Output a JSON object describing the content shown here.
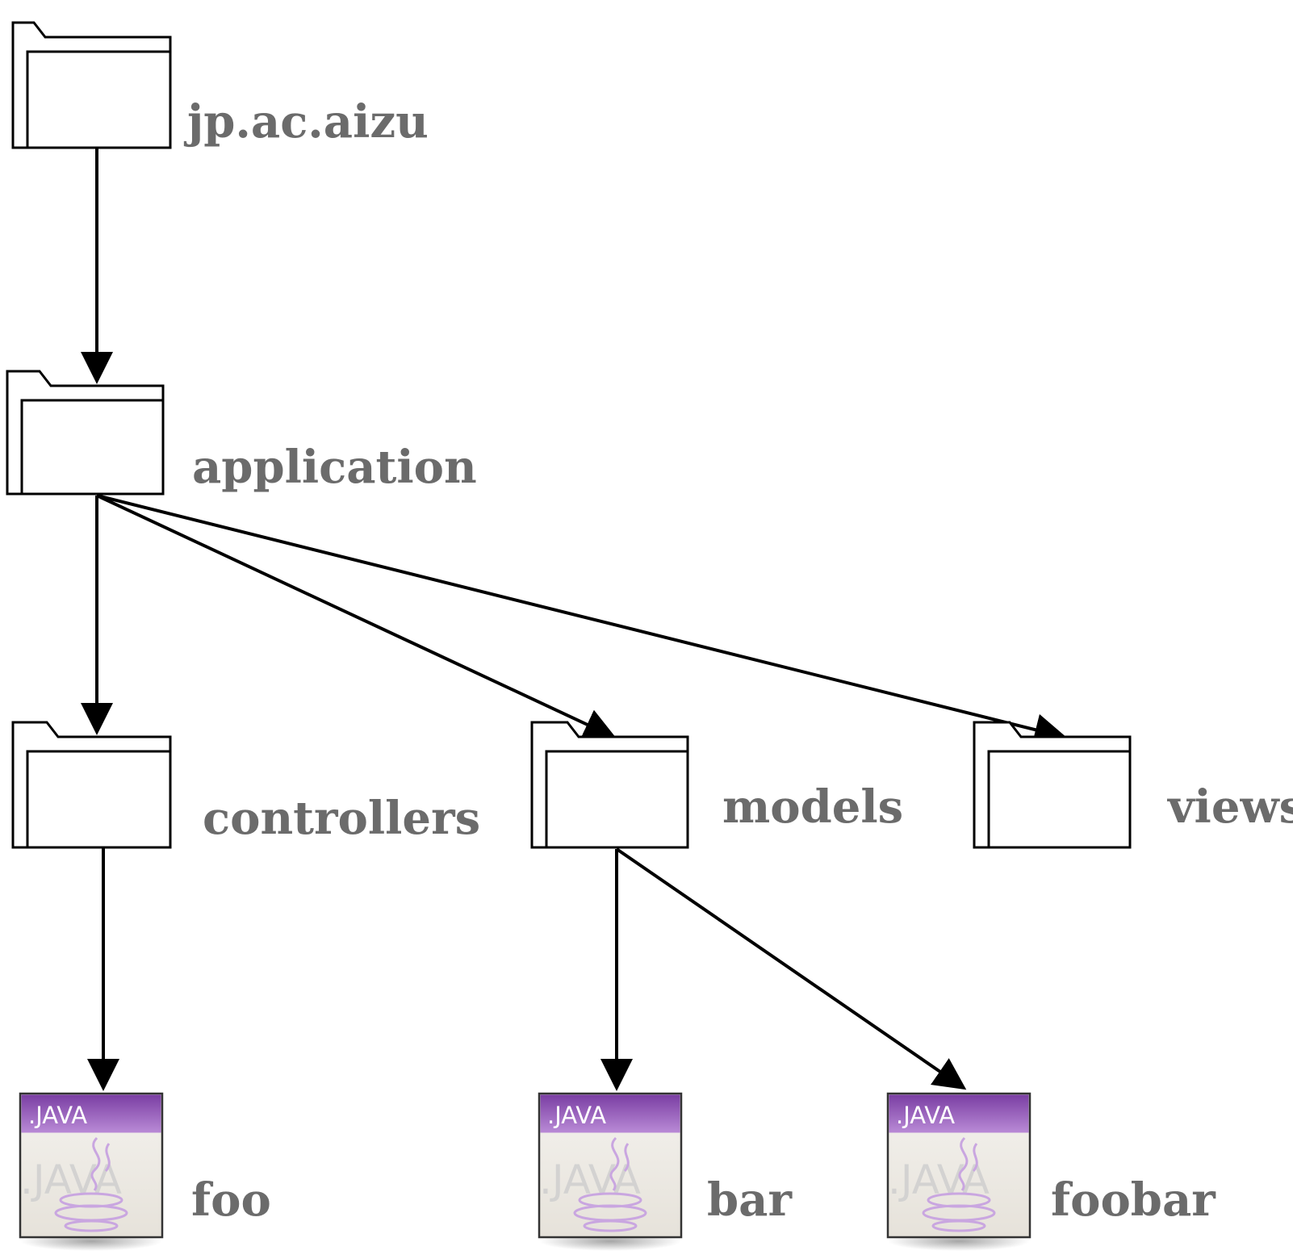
{
  "diagram": {
    "colors": {
      "label": "#6b6b6b",
      "edge": "#000000",
      "java_header": "#8a4fb0",
      "java_body": "#eeeae4",
      "java_cup": "#c9a6e0"
    },
    "nodes": {
      "jp_ac_aizu": {
        "label": "jp.ac.aizu",
        "kind": "folder-icon"
      },
      "application": {
        "label": "application",
        "kind": "folder-icon"
      },
      "controllers": {
        "label": "controllers",
        "kind": "folder-icon"
      },
      "models": {
        "label": "models",
        "kind": "folder-icon"
      },
      "views": {
        "label": "views",
        "kind": "folder-icon"
      },
      "foo": {
        "label": "foo",
        "kind": "java-file-icon",
        "badge": ".JAVA",
        "watermark": ".JAVA"
      },
      "bar": {
        "label": "bar",
        "kind": "java-file-icon",
        "badge": ".JAVA",
        "watermark": ".JAVA"
      },
      "foobar": {
        "label": "foobar",
        "kind": "java-file-icon",
        "badge": ".JAVA",
        "watermark": ".JAVA"
      }
    },
    "edges": [
      {
        "from": "jp.ac.aizu",
        "to": "application"
      },
      {
        "from": "application",
        "to": "controllers"
      },
      {
        "from": "application",
        "to": "models"
      },
      {
        "from": "application",
        "to": "views"
      },
      {
        "from": "controllers",
        "to": "foo"
      },
      {
        "from": "models",
        "to": "bar"
      },
      {
        "from": "models",
        "to": "foobar"
      }
    ]
  }
}
